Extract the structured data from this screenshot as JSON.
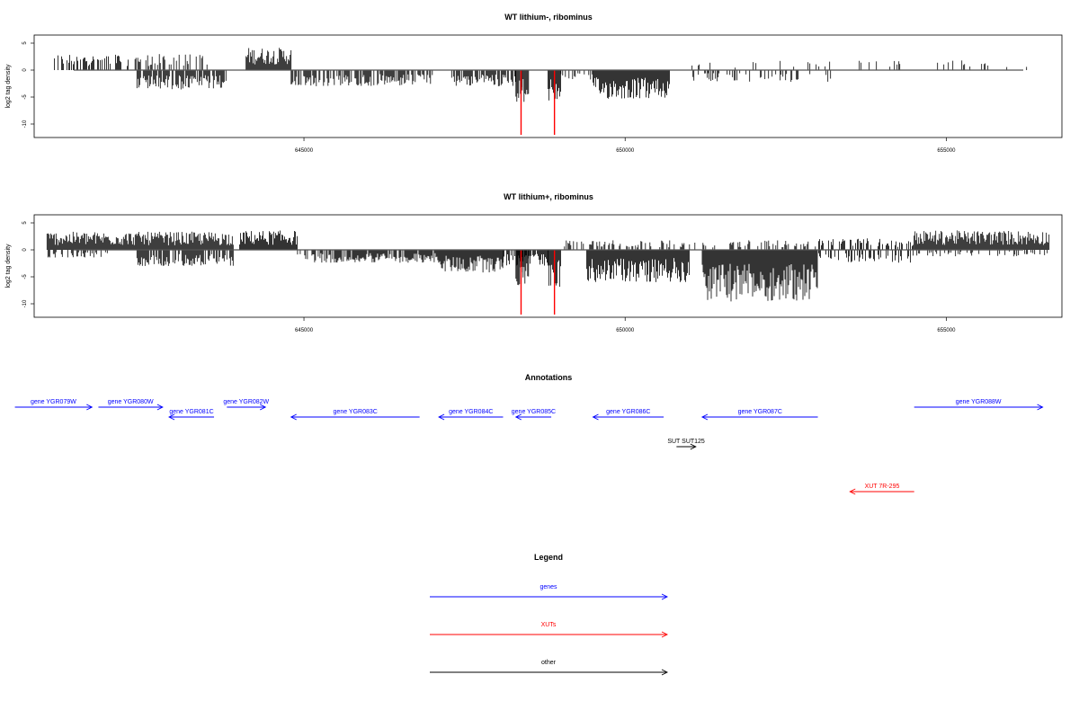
{
  "chart_data": [
    {
      "type": "bar",
      "title": "WT lithium-, ribominus",
      "ylabel": "log2 tag density",
      "xlabel": "",
      "xlim": [
        640800,
        656800
      ],
      "ylim": [
        -12.5,
        6.5
      ],
      "yticks": [
        "5",
        "0",
        "-5",
        "-10"
      ],
      "xticks": [
        "645000",
        "650000",
        "655000"
      ],
      "colors": {
        "bars": "#000000",
        "highlight": "#ff0000"
      },
      "highlight_bars": [
        {
          "x": 648380,
          "y": -12.0
        },
        {
          "x": 648900,
          "y": -12.0
        }
      ],
      "segments": [
        {
          "x0": 641100,
          "x1": 642300,
          "sign": 1,
          "amp": 2.5,
          "density": 0.5
        },
        {
          "x0": 642300,
          "x1": 643500,
          "sign": 1,
          "amp": 2.5,
          "density": 0.4
        },
        {
          "x0": 642400,
          "x1": 643800,
          "sign": -1,
          "amp": 3.0,
          "density": 0.8
        },
        {
          "x0": 644100,
          "x1": 644800,
          "sign": 1,
          "amp": 3.5,
          "density": 1.0
        },
        {
          "x0": 644800,
          "x1": 647000,
          "sign": -1,
          "amp": 2.5,
          "density": 0.7
        },
        {
          "x0": 647300,
          "x1": 648300,
          "sign": -1,
          "amp": 2.5,
          "density": 0.8
        },
        {
          "x0": 648300,
          "x1": 648500,
          "sign": -1,
          "amp": 5.0,
          "density": 1.0
        },
        {
          "x0": 648800,
          "x1": 649000,
          "sign": -1,
          "amp": 5.0,
          "density": 1.0
        },
        {
          "x0": 649000,
          "x1": 649500,
          "sign": -1,
          "amp": 2.0,
          "density": 0.5
        },
        {
          "x0": 649500,
          "x1": 650700,
          "sign": -1,
          "amp": 4.5,
          "density": 1.0
        },
        {
          "x0": 651000,
          "x1": 653200,
          "sign": -1,
          "amp": 1.8,
          "density": 0.25
        },
        {
          "x0": 651000,
          "x1": 656600,
          "sign": 1,
          "amp": 1.5,
          "density": 0.1
        }
      ]
    },
    {
      "type": "bar",
      "title": "WT lithium+, ribominus",
      "ylabel": "log2 tag density",
      "xlabel": "",
      "xlim": [
        640800,
        656800
      ],
      "ylim": [
        -12.5,
        6.5
      ],
      "yticks": [
        "5",
        "0",
        "-5",
        "-10"
      ],
      "xticks": [
        "645000",
        "650000",
        "655000"
      ],
      "colors": {
        "bars": "#000000",
        "highlight": "#ff0000"
      },
      "highlight_bars": [
        {
          "x": 648380,
          "y": -12.0
        },
        {
          "x": 648900,
          "y": -12.0
        }
      ],
      "segments": [
        {
          "x0": 641000,
          "x1": 643900,
          "sign": 1,
          "amp": 2.8,
          "density": 1.0
        },
        {
          "x0": 641000,
          "x1": 642000,
          "sign": -1,
          "amp": 1.2,
          "density": 0.5
        },
        {
          "x0": 642400,
          "x1": 643900,
          "sign": -1,
          "amp": 2.5,
          "density": 0.8
        },
        {
          "x0": 644000,
          "x1": 644900,
          "sign": 1,
          "amp": 3.0,
          "density": 1.0
        },
        {
          "x0": 644900,
          "x1": 647100,
          "sign": -1,
          "amp": 2.0,
          "density": 0.8
        },
        {
          "x0": 647100,
          "x1": 648100,
          "sign": -1,
          "amp": 3.5,
          "density": 1.0
        },
        {
          "x0": 648100,
          "x1": 648800,
          "sign": -1,
          "amp": 2.5,
          "density": 0.8
        },
        {
          "x0": 648300,
          "x1": 648500,
          "sign": -1,
          "amp": 6.0,
          "density": 1.0
        },
        {
          "x0": 648800,
          "x1": 649000,
          "sign": -1,
          "amp": 6.0,
          "density": 1.0
        },
        {
          "x0": 649400,
          "x1": 651000,
          "sign": -1,
          "amp": 5.0,
          "density": 1.0
        },
        {
          "x0": 651200,
          "x1": 653000,
          "sign": -1,
          "amp": 8.0,
          "density": 1.0
        },
        {
          "x0": 649000,
          "x1": 653000,
          "sign": 1,
          "amp": 1.5,
          "density": 0.3
        },
        {
          "x0": 653000,
          "x1": 654500,
          "sign": 1,
          "amp": 1.8,
          "density": 0.4
        },
        {
          "x0": 653000,
          "x1": 654500,
          "sign": -1,
          "amp": 2.0,
          "density": 0.3
        },
        {
          "x0": 654500,
          "x1": 656600,
          "sign": 1,
          "amp": 3.0,
          "density": 1.0
        },
        {
          "x0": 654500,
          "x1": 656600,
          "sign": -1,
          "amp": 1.0,
          "density": 0.3
        }
      ]
    }
  ],
  "annotations": {
    "title": "Annotations",
    "items": [
      {
        "label": "gene YGR079W",
        "start": 640500,
        "end": 641700,
        "strand": "+",
        "row": 0,
        "type": "gene"
      },
      {
        "label": "gene YGR080W",
        "start": 641800,
        "end": 642800,
        "strand": "+",
        "row": 0,
        "type": "gene"
      },
      {
        "label": "gene YGR081C",
        "start": 642900,
        "end": 643600,
        "strand": "-",
        "row": 1,
        "type": "gene"
      },
      {
        "label": "gene YGR082W",
        "start": 643800,
        "end": 644400,
        "strand": "+",
        "row": 0,
        "type": "gene"
      },
      {
        "label": "gene YGR083C",
        "start": 644800,
        "end": 646800,
        "strand": "-",
        "row": 1,
        "type": "gene"
      },
      {
        "label": "gene YGR084C",
        "start": 647100,
        "end": 648100,
        "strand": "-",
        "row": 1,
        "type": "gene"
      },
      {
        "label": "gene YGR085C",
        "start": 648300,
        "end": 648850,
        "strand": "-",
        "row": 1,
        "type": "gene"
      },
      {
        "label": "gene YGR086C",
        "start": 649500,
        "end": 650600,
        "strand": "-",
        "row": 1,
        "type": "gene"
      },
      {
        "label": "gene YGR087C",
        "start": 651200,
        "end": 653000,
        "strand": "-",
        "row": 1,
        "type": "gene"
      },
      {
        "label": "gene YGR088W",
        "start": 654500,
        "end": 656500,
        "strand": "+",
        "row": 0,
        "type": "gene"
      },
      {
        "label": "SUT SUT125",
        "start": 650800,
        "end": 651100,
        "strand": "+",
        "row": 2,
        "type": "other"
      },
      {
        "label": "XUT 7R-295",
        "start": 653500,
        "end": 654500,
        "strand": "-",
        "row": 3,
        "type": "xut"
      }
    ]
  },
  "legend": {
    "title": "Legend",
    "items": [
      {
        "label": "genes",
        "color": "#0000ff"
      },
      {
        "label": "XUTs",
        "color": "#ff0000"
      },
      {
        "label": "other",
        "color": "#000000"
      }
    ]
  }
}
